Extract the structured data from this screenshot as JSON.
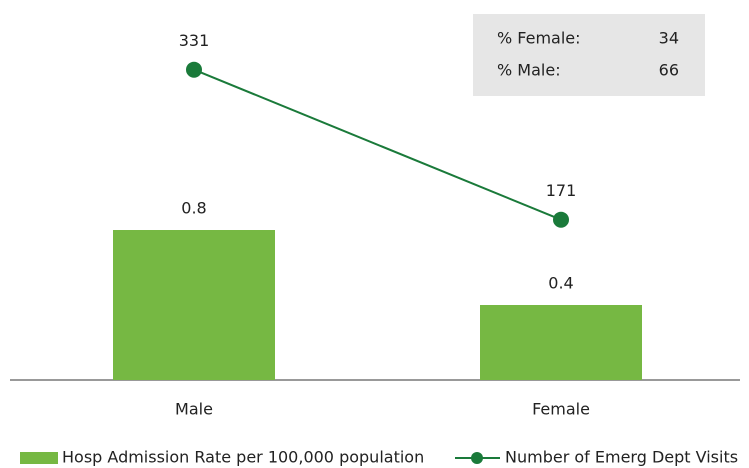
{
  "chart_data": {
    "type": "bar",
    "categories": [
      "Male",
      "Female"
    ],
    "series": [
      {
        "name": "Hosp Admission Rate per 100,000 population",
        "type": "bar",
        "color": "#76b843",
        "values": [
          0.8,
          0.4
        ]
      },
      {
        "name": "Number of Emerg Dept Visits",
        "type": "line",
        "axis": "y2",
        "color": "#1a7a3a",
        "values": [
          331,
          171
        ]
      }
    ],
    "ylim": [
      0,
      2
    ],
    "y2lim": [
      0,
      400
    ],
    "annotations": [
      {
        "label": "% Female:",
        "value": 34
      },
      {
        "label": "% Male:",
        "value": 66
      }
    ]
  }
}
